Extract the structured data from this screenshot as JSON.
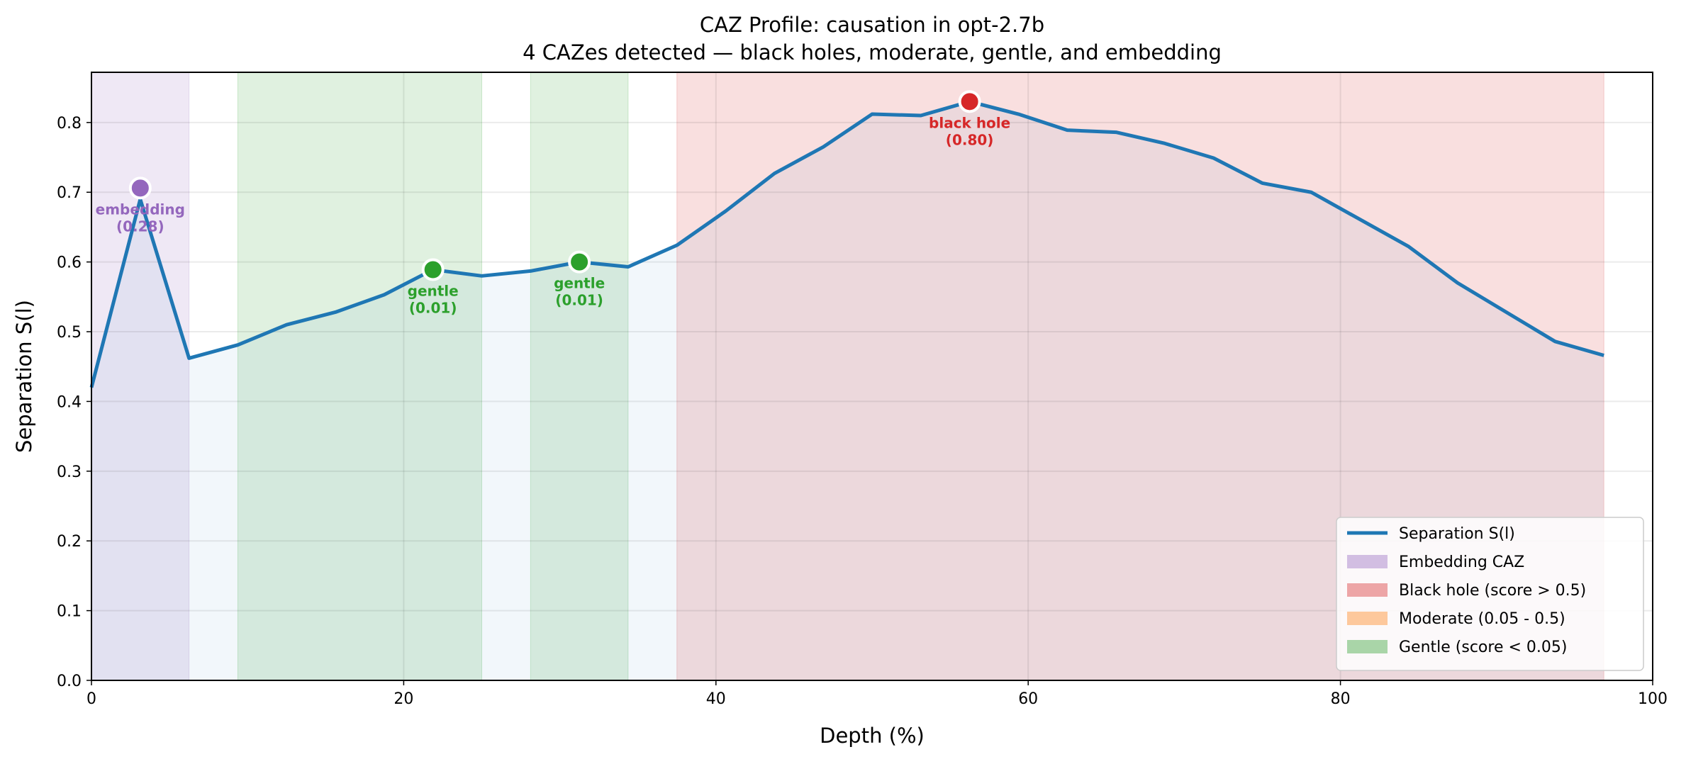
{
  "chart_data": {
    "type": "line",
    "title": "CAZ Profile: causation in opt-2.7b",
    "subtitle": "4 CAZes detected — black holes, moderate, gentle, and embedding",
    "xlabel": "Depth (%)",
    "ylabel": "Separation S(l)",
    "xlim": [
      0,
      100
    ],
    "ylim": [
      0,
      0.872
    ],
    "xticks": [
      0,
      20,
      40,
      60,
      80,
      100
    ],
    "yticks": [
      0.0,
      0.1,
      0.2,
      0.3,
      0.4,
      0.5,
      0.6,
      0.7,
      0.8
    ],
    "grid": true,
    "legend_position": "bottom-right",
    "series": [
      {
        "name": "Separation S(l)",
        "color": "#1f77b4",
        "x": [
          0,
          3.125,
          6.25,
          9.375,
          12.5,
          15.625,
          18.75,
          21.875,
          25,
          28.125,
          31.25,
          34.375,
          37.5,
          40.625,
          43.75,
          46.875,
          50,
          53.125,
          56.25,
          59.375,
          62.5,
          65.625,
          68.75,
          71.875,
          75,
          78.125,
          81.25,
          84.375,
          87.5,
          90.625,
          93.75,
          96.875
        ],
        "y": [
          0.42,
          0.69,
          0.462,
          0.481,
          0.51,
          0.528,
          0.553,
          0.589,
          0.58,
          0.587,
          0.6,
          0.593,
          0.624,
          0.673,
          0.727,
          0.765,
          0.812,
          0.81,
          0.83,
          0.812,
          0.789,
          0.786,
          0.77,
          0.749,
          0.713,
          0.7,
          0.661,
          0.622,
          0.57,
          0.528,
          0.486,
          0.466
        ]
      }
    ],
    "regions": [
      {
        "type": "embedding",
        "x0": 0,
        "x1": 6.25,
        "color": "#9467bd"
      },
      {
        "type": "gentle",
        "x0": 9.375,
        "x1": 25,
        "color": "#2ca02c"
      },
      {
        "type": "gentle",
        "x0": 28.125,
        "x1": 34.375,
        "color": "#2ca02c"
      },
      {
        "type": "black hole",
        "x0": 37.5,
        "x1": 96.875,
        "color": "#d62728"
      }
    ],
    "annotations": [
      {
        "x": 3.125,
        "y": 0.706,
        "label": "embedding",
        "score": "(0.28)",
        "color": "#9467bd"
      },
      {
        "x": 21.875,
        "y": 0.589,
        "label": "gentle",
        "score": "(0.01)",
        "color": "#2ca02c"
      },
      {
        "x": 31.25,
        "y": 0.6,
        "label": "gentle",
        "score": "(0.01)",
        "color": "#2ca02c"
      },
      {
        "x": 56.25,
        "y": 0.83,
        "label": "black hole",
        "score": "(0.80)",
        "color": "#d62728"
      }
    ],
    "legend": [
      {
        "label": "Separation S(l)",
        "kind": "line",
        "color": "#1f77b4"
      },
      {
        "label": "Embedding CAZ",
        "kind": "patch",
        "color": "#9467bd"
      },
      {
        "label": "Black hole (score > 0.5)",
        "kind": "patch",
        "color": "#d62728"
      },
      {
        "label": "Moderate (0.05 - 0.5)",
        "kind": "patch",
        "color": "#ff7f0e"
      },
      {
        "label": "Gentle (score < 0.05)",
        "kind": "patch",
        "color": "#2ca02c"
      }
    ]
  }
}
